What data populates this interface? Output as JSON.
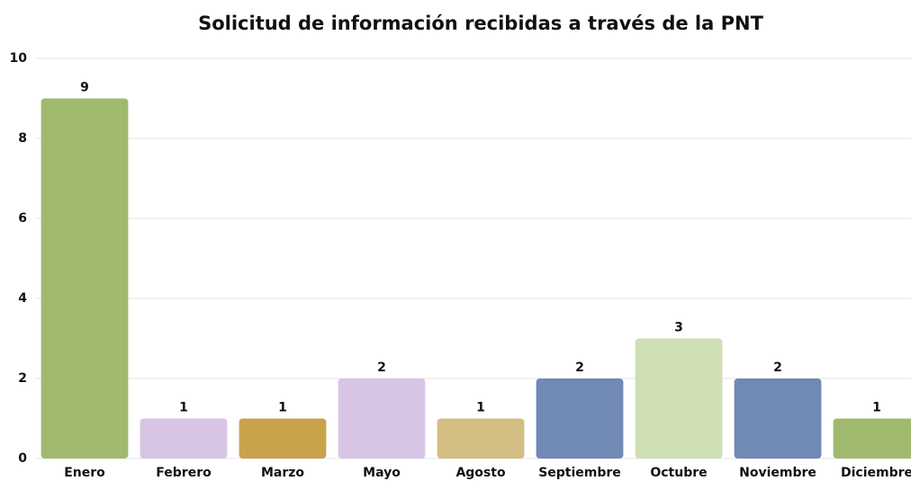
{
  "chart_data": {
    "type": "bar",
    "title": "Solicitud de información recibidas a través de la PNT",
    "categories": [
      "Enero",
      "Febrero",
      "Marzo",
      "Mayo",
      "Agosto",
      "Septiembre",
      "Octubre",
      "Noviembre",
      "Diciembre"
    ],
    "values": [
      9,
      1,
      1,
      2,
      1,
      2,
      3,
      2,
      1
    ],
    "colors": [
      "#9fba6e",
      "#d8c5e6",
      "#c9a24c",
      "#d8c5e6",
      "#d2bd82",
      "#7089b5",
      "#cfe0b4",
      "#7089b5",
      "#9fba6e"
    ],
    "ylim": [
      0,
      10
    ],
    "yticks": [
      0,
      2,
      4,
      6,
      8,
      10
    ],
    "grid": true
  }
}
